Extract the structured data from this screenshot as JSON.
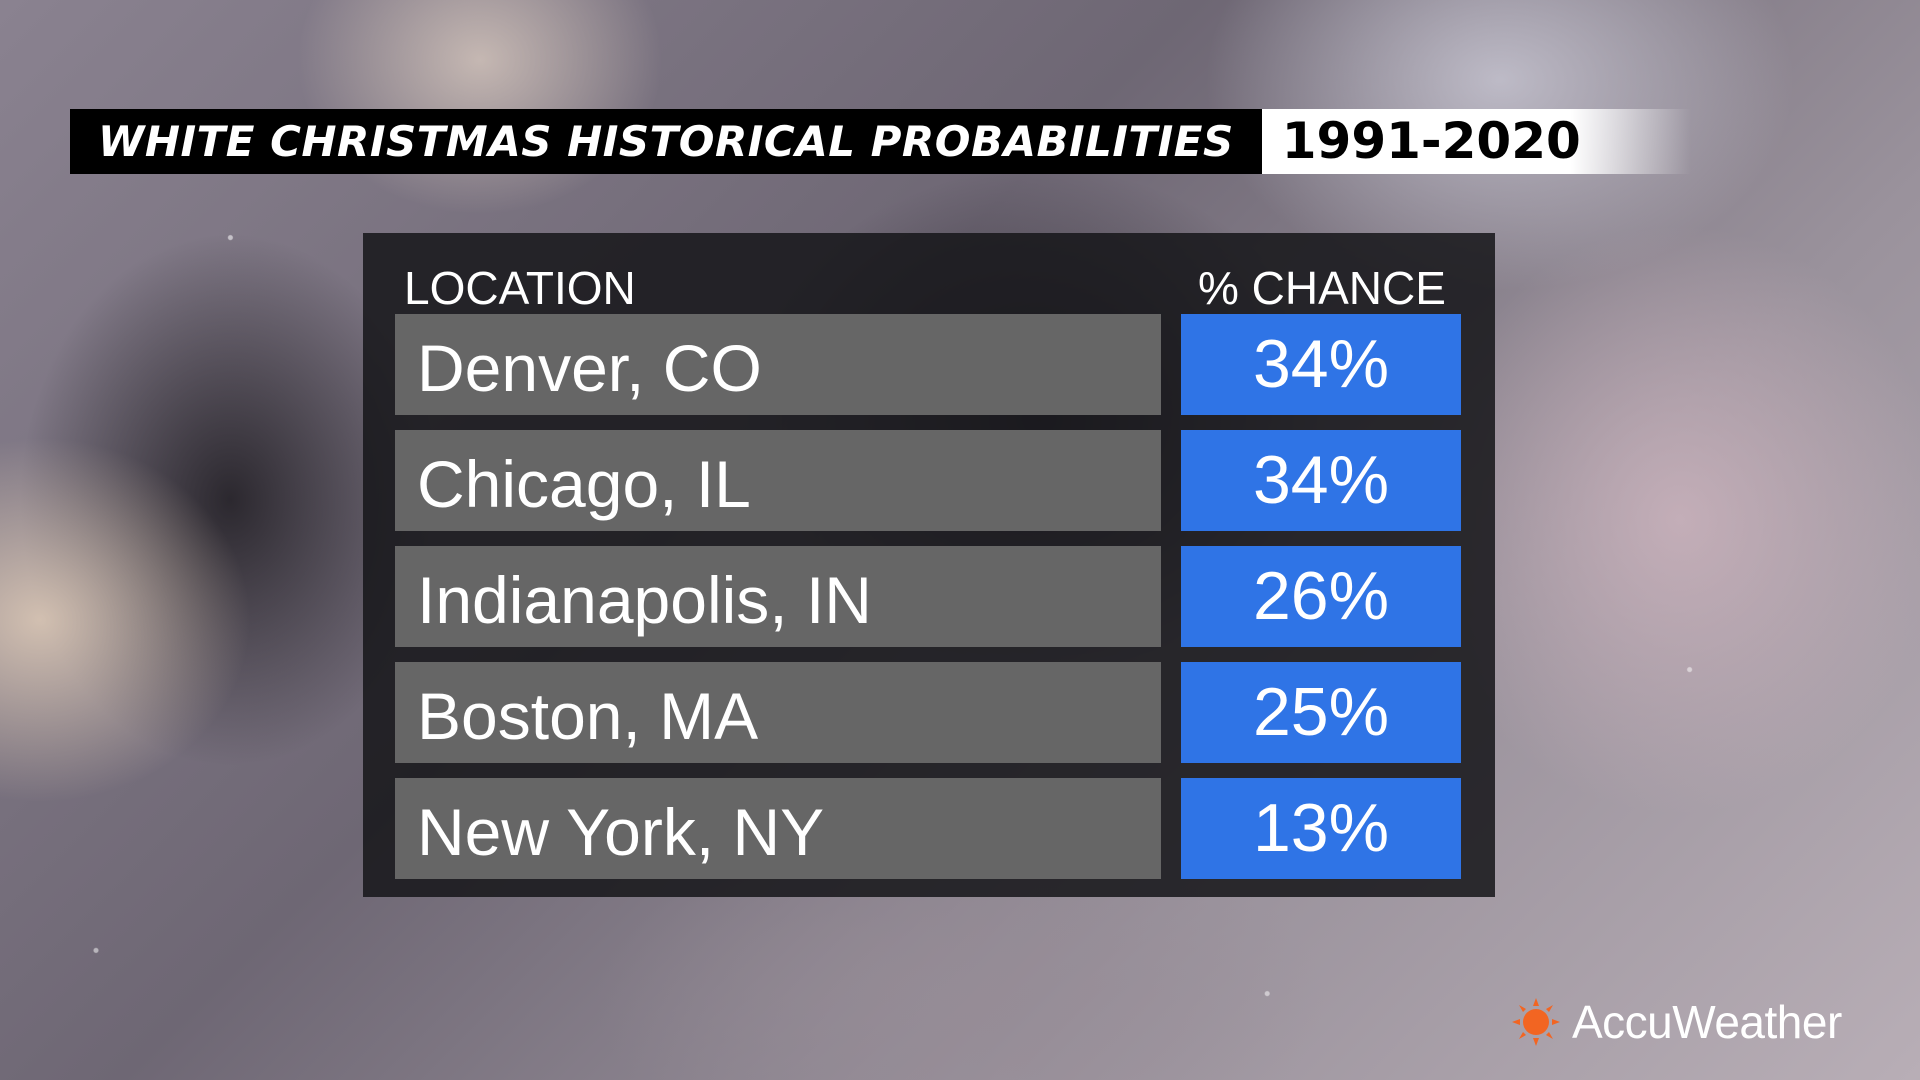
{
  "header": {
    "title": "WHITE CHRISTMAS HISTORICAL PROBABILITIES",
    "period": "1991-2020"
  },
  "table": {
    "headers": {
      "location": "LOCATION",
      "chance": "% CHANCE"
    }
  },
  "chart_data": {
    "type": "table",
    "title": "WHITE CHRISTMAS HISTORICAL PROBABILITIES",
    "subtitle": "1991-2020",
    "columns": [
      "LOCATION",
      "% CHANCE"
    ],
    "rows": [
      {
        "location": "Denver, CO",
        "chance": "34%",
        "value": 34
      },
      {
        "location": "Chicago, IL",
        "chance": "34%",
        "value": 34
      },
      {
        "location": "Indianapolis, IN",
        "chance": "26%",
        "value": 26
      },
      {
        "location": "Boston, MA",
        "chance": "25%",
        "value": 25
      },
      {
        "location": "New York, NY",
        "chance": "13%",
        "value": 13
      }
    ]
  },
  "colors": {
    "chance_cell": "#2f74e6",
    "location_cell": "#666666",
    "panel": "#16161a",
    "brand_icon": "#f26522"
  },
  "brand": {
    "name": "AccuWeather",
    "icon": "sun-icon"
  }
}
